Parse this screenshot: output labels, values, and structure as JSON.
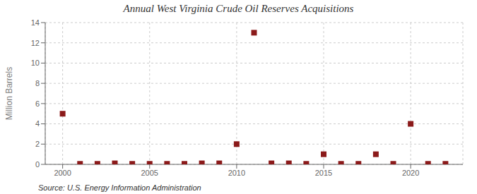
{
  "chart_data": {
    "type": "scatter",
    "title": "Annual West Virginia Crude Oil Reserves Acquisitions",
    "ylabel": "Million Barrels",
    "annotation": "Source: U.S. Energy Information Administration",
    "x": [
      2000,
      2001,
      2002,
      2003,
      2004,
      2005,
      2006,
      2007,
      2008,
      2009,
      2010,
      2011,
      2012,
      2013,
      2014,
      2015,
      2016,
      2017,
      2018,
      2019,
      2020,
      2021,
      2022
    ],
    "values": [
      5.0,
      0.05,
      0.05,
      0.1,
      0.05,
      0.05,
      0.05,
      0.05,
      0.1,
      0.1,
      2.0,
      13.0,
      0.1,
      0.1,
      0.05,
      1.0,
      0.05,
      0.05,
      1.0,
      0.05,
      4.0,
      0.05,
      0.05
    ],
    "color": "#8b1a1a",
    "marker": "square",
    "xlim": [
      1999,
      2023
    ],
    "ylim": [
      0,
      14
    ],
    "xticks": [
      2000,
      2005,
      2010,
      2015,
      2020
    ],
    "yticks": [
      0,
      2,
      4,
      6,
      8,
      10,
      12,
      14
    ],
    "grid": true
  }
}
